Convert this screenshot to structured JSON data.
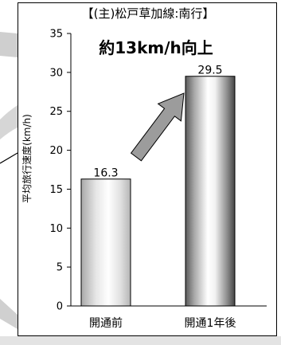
{
  "chart_data": {
    "type": "bar",
    "title": "【(主)松戸草加線:南行】",
    "annotation": "約13km/h向上",
    "xlabel": "",
    "ylabel": "平均旅行速度(km/h)",
    "categories": [
      "開通前",
      "開通1年後"
    ],
    "values": [
      16.3,
      29.5
    ],
    "data_labels": [
      "16.3",
      "29.5"
    ],
    "ylim": [
      0,
      35
    ],
    "yticks": [
      "0",
      "5",
      "10",
      "15",
      "20",
      "25",
      "30",
      "35"
    ],
    "grid": false,
    "legend": "none",
    "bar_fill": "vertical cylinder gradient (white to gray)",
    "arrow_color": "#9c9c9c"
  }
}
